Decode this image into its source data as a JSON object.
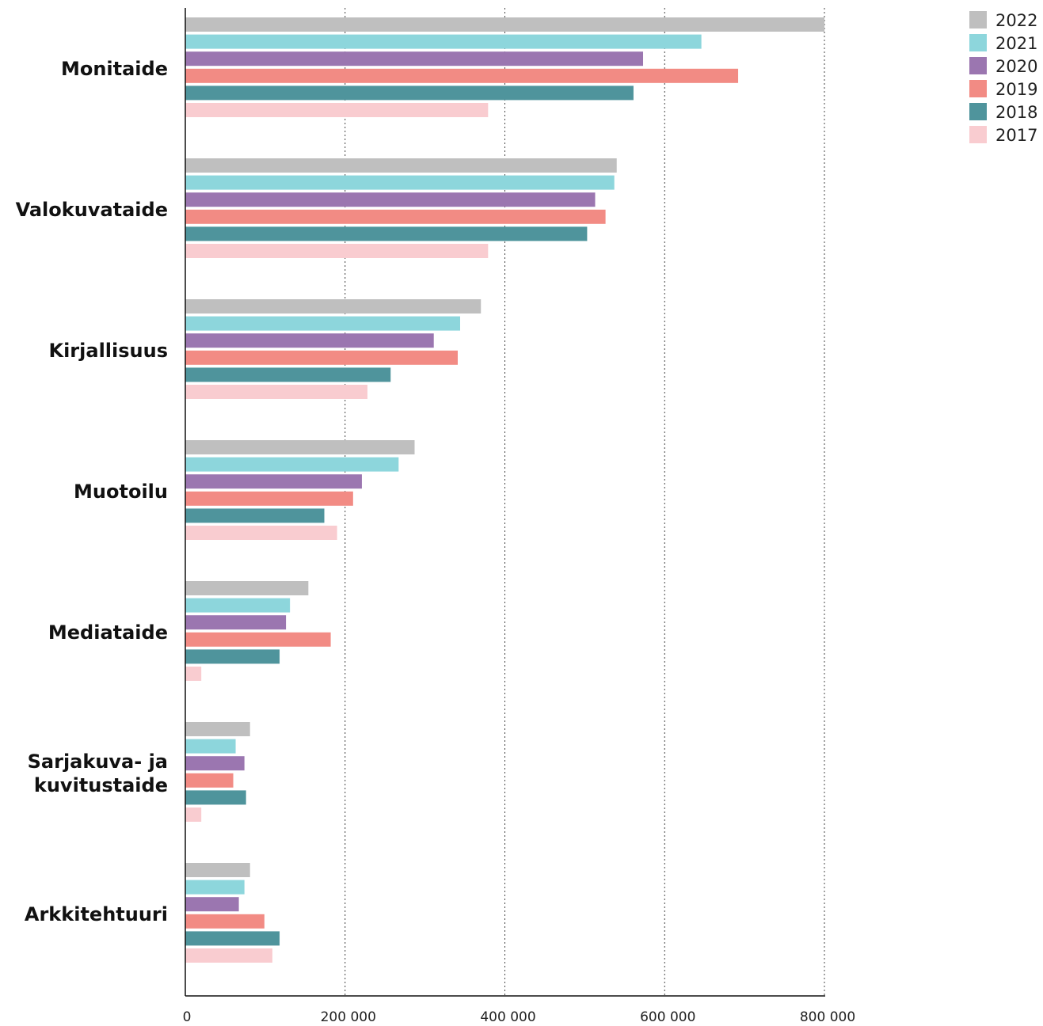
{
  "chart_data": {
    "type": "bar",
    "orientation": "horizontal",
    "categories": [
      "Monitaide",
      "Valokuvataide",
      "Kirjallisuus",
      "Muotoilu",
      "Mediataide",
      "Sarjakuva- ja kuvitustaide",
      "Arkkitehtuuri"
    ],
    "category_label_lines": [
      [
        "Monitaide"
      ],
      [
        "Valokuvataide"
      ],
      [
        "Kirjallisuus"
      ],
      [
        "Muotoilu"
      ],
      [
        "Mediataide"
      ],
      [
        "Sarjakuva- ja",
        "kuvitustaide"
      ],
      [
        "Arkkitehtuuri"
      ]
    ],
    "series": [
      {
        "name": "2022",
        "color": "#bfbfbf",
        "values": [
          800000,
          540000,
          370000,
          287000,
          154000,
          81000,
          81000
        ]
      },
      {
        "name": "2021",
        "color": "#8dd6dc",
        "values": [
          646000,
          537000,
          344000,
          267000,
          131000,
          63000,
          74000
        ]
      },
      {
        "name": "2020",
        "color": "#9b76b0",
        "values": [
          573000,
          513000,
          311000,
          221000,
          126000,
          74000,
          67000
        ]
      },
      {
        "name": "2019",
        "color": "#f28b84",
        "values": [
          692000,
          526000,
          341000,
          210000,
          182000,
          60000,
          99000
        ]
      },
      {
        "name": "2018",
        "color": "#4f949c",
        "values": [
          561000,
          503000,
          257000,
          174000,
          118000,
          76000,
          118000
        ]
      },
      {
        "name": "2017",
        "color": "#f9ccd0",
        "values": [
          379000,
          379000,
          228000,
          190000,
          20000,
          20000,
          109000
        ]
      }
    ],
    "x_ticks": [
      0,
      200000,
      400000,
      600000,
      800000
    ],
    "x_tick_labels": [
      "0",
      "200 000",
      "400 000",
      "600 000",
      "800 000"
    ],
    "xlim": [
      0,
      800000
    ],
    "grid": "vertical-dotted",
    "legend_position": "top-right",
    "title": "",
    "xlabel": "",
    "ylabel": ""
  }
}
